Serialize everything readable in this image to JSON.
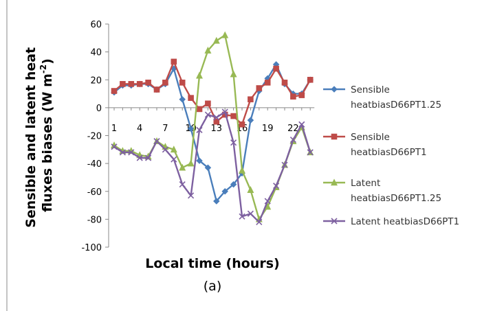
{
  "chart_data": {
    "type": "line",
    "title": "",
    "xlabel": "Local time (hours)",
    "ylabel": "Sensible and latent heat fluxes biases (W m-2)",
    "ylabel_line1": "Sensible and latent heat",
    "ylabel_line2_prefix": "fluxes biases (W m",
    "ylabel_superscript": "-2",
    "ylabel_suffix": ")",
    "caption": "(a)",
    "ylim": [
      -100,
      60
    ],
    "y_ticks": [
      "60",
      "40",
      "20",
      "0",
      "-20",
      "-40",
      "-60",
      "-80",
      "-100"
    ],
    "x": [
      1,
      2,
      3,
      4,
      5,
      6,
      7,
      8,
      9,
      10,
      11,
      12,
      13,
      14,
      15,
      16,
      17,
      18,
      19,
      20,
      21,
      22,
      23,
      24
    ],
    "x_tick_labels": [
      "1",
      "4",
      "7",
      "10",
      "13",
      "16",
      "19",
      "22"
    ],
    "x_tick_values": [
      1,
      4,
      7,
      10,
      13,
      16,
      19,
      22
    ],
    "grid": false,
    "legend_position": "right",
    "series": [
      {
        "name": "Sensible heatbiasD66PT1.25",
        "legend_lines": [
          "Sensible",
          "heatbiasD66PT1.25"
        ],
        "color": "#4a7ebb",
        "marker": "diamond",
        "values": [
          11,
          16,
          16,
          17,
          17,
          13,
          17,
          28,
          6,
          -15,
          -38,
          -43,
          -67,
          -60,
          -55,
          -47,
          -9,
          12,
          21,
          31,
          17,
          10,
          10,
          20
        ]
      },
      {
        "name": "Sensible heatbiasD66PT1",
        "legend_lines": [
          "Sensible",
          "heatbiasD66PT1"
        ],
        "color": "#be4b48",
        "marker": "square",
        "values": [
          12,
          17,
          17,
          17,
          18,
          13,
          18,
          33,
          18,
          7,
          -1,
          3,
          -10,
          -5,
          -6,
          -12,
          6,
          14,
          18,
          28,
          18,
          8,
          9,
          20
        ]
      },
      {
        "name": "Latent heatbiasD66PT1.25",
        "legend_lines": [
          "Latent",
          "heatbiasD66PT1.25"
        ],
        "color": "#98b954",
        "marker": "triangle",
        "values": [
          -27,
          -31,
          -31,
          -34,
          -35,
          -24,
          -28,
          -30,
          -43,
          -40,
          23,
          41,
          48,
          52,
          24,
          -45,
          -59,
          -80,
          -71,
          -57,
          -41,
          -24,
          -14,
          -32
        ]
      },
      {
        "name": "Latent heatbiasD66PT1",
        "legend_lines": [
          "Latent heatbiasD66PT1"
        ],
        "color": "#7d60a0",
        "marker": "x",
        "values": [
          -28,
          -32,
          -32,
          -36,
          -36,
          -24,
          -30,
          -37,
          -55,
          -63,
          -16,
          -5,
          -7,
          -3,
          -25,
          -78,
          -76,
          -82,
          -67,
          -56,
          -41,
          -23,
          -12,
          -32
        ]
      }
    ]
  }
}
